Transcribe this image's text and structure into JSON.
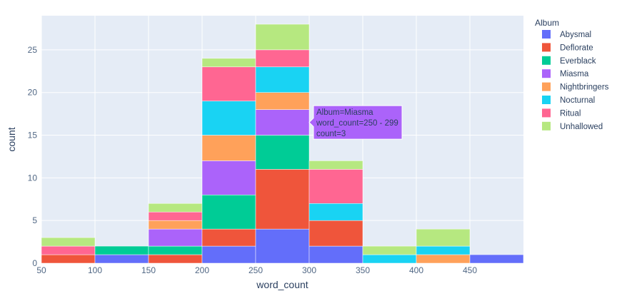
{
  "chart_data": {
    "type": "bar",
    "barmode": "stack",
    "xlabel": "word_count",
    "ylabel": "count",
    "xlim": [
      50,
      500
    ],
    "ylim": [
      0,
      29
    ],
    "x_ticks": [
      50,
      100,
      150,
      200,
      250,
      300,
      350,
      400,
      450
    ],
    "y_ticks": [
      0,
      5,
      10,
      15,
      20,
      25
    ],
    "bins": [
      [
        50,
        100
      ],
      [
        100,
        150
      ],
      [
        150,
        200
      ],
      [
        200,
        250
      ],
      [
        250,
        300
      ],
      [
        300,
        350
      ],
      [
        350,
        400
      ],
      [
        400,
        450
      ],
      [
        450,
        500
      ]
    ],
    "legend": {
      "title": "Album",
      "placement": "right"
    },
    "series": [
      {
        "name": "Abysmal",
        "color": "#636efa",
        "values": [
          0,
          1,
          0,
          2,
          4,
          2,
          0,
          0,
          1
        ]
      },
      {
        "name": "Deflorate",
        "color": "#ef553b",
        "values": [
          1,
          0,
          1,
          2,
          7,
          3,
          0,
          0,
          0
        ]
      },
      {
        "name": "Everblack",
        "color": "#00cc96",
        "values": [
          0,
          1,
          1,
          4,
          4,
          0,
          0,
          0,
          0
        ]
      },
      {
        "name": "Miasma",
        "color": "#ab63fa",
        "values": [
          0,
          0,
          2,
          4,
          3,
          0,
          0,
          0,
          0
        ]
      },
      {
        "name": "Nightbringers",
        "color": "#ffa15a",
        "values": [
          0,
          0,
          1,
          3,
          2,
          0,
          0,
          1,
          0
        ]
      },
      {
        "name": "Nocturnal",
        "color": "#19d3f3",
        "values": [
          0,
          0,
          0,
          4,
          3,
          2,
          1,
          1,
          0
        ]
      },
      {
        "name": "Ritual",
        "color": "#ff6692",
        "values": [
          1,
          0,
          1,
          4,
          2,
          4,
          0,
          0,
          0
        ]
      },
      {
        "name": "Unhallowed",
        "color": "#b6e880",
        "values": [
          1,
          0,
          1,
          1,
          3,
          1,
          1,
          2,
          0
        ]
      }
    ],
    "tooltip": {
      "series": "Miasma",
      "bin_index": 4,
      "lines": [
        "Album=Miasma",
        "word_count=250 - 299",
        "count=3"
      ]
    }
  },
  "colors": {
    "plot_bg": "#e5ecf6",
    "grid": "#ffffff",
    "axis_text": "#2a3f5f",
    "label_text": "#506784"
  }
}
